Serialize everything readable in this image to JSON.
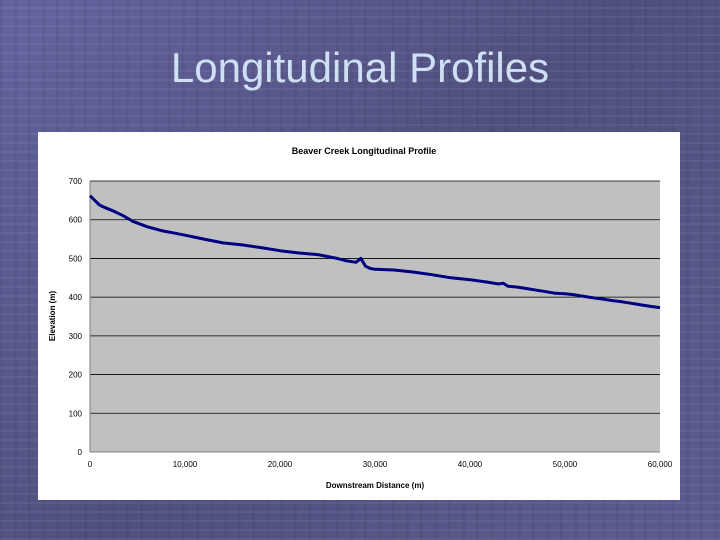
{
  "slide": {
    "title": "Longitudinal Profiles"
  },
  "colors": {
    "plot_background": "#c0c0c0",
    "line": "#000080",
    "gridline": "#000000"
  },
  "chart_data": {
    "type": "line",
    "title": "Beaver Creek Longitudinal Profile",
    "xlabel": "Downstream Distance (m)",
    "ylabel": "Elevation (m)",
    "xlim": [
      0,
      60000
    ],
    "ylim": [
      0,
      700
    ],
    "x_ticks": [
      0,
      10000,
      20000,
      30000,
      40000,
      50000,
      60000
    ],
    "x_tick_labels": [
      "0",
      "10,000",
      "20,000",
      "30,000",
      "40,000",
      "50,000",
      "60,000"
    ],
    "y_ticks": [
      0,
      100,
      200,
      300,
      400,
      500,
      600,
      700
    ],
    "y_tick_labels": [
      "0",
      "100",
      "200",
      "300",
      "400",
      "500",
      "600",
      "700"
    ],
    "horizontal_gridlines": true,
    "legend": "none",
    "series": [
      {
        "name": "Elevation",
        "x": [
          0,
          500,
          1000,
          1500,
          2500,
          3500,
          4500,
          6000,
          7500,
          9000,
          10000,
          12000,
          14000,
          16000,
          18000,
          20000,
          22000,
          24000,
          25000,
          26000,
          27000,
          28000,
          28500,
          29000,
          29500,
          30000,
          32000,
          34000,
          36000,
          38000,
          40000,
          42000,
          43000,
          43500,
          44000,
          45000,
          46000,
          47000,
          48000,
          49000,
          50000,
          51000,
          52000,
          53000,
          54000,
          55000,
          56000,
          57000,
          58000,
          59000,
          60000
        ],
        "y": [
          662,
          650,
          638,
          632,
          622,
          610,
          596,
          582,
          572,
          565,
          560,
          550,
          540,
          535,
          528,
          520,
          514,
          510,
          505,
          500,
          494,
          490,
          500,
          480,
          474,
          472,
          470,
          465,
          458,
          450,
          445,
          438,
          434,
          436,
          428,
          426,
          422,
          418,
          414,
          410,
          409,
          406,
          402,
          398,
          395,
          391,
          388,
          384,
          380,
          376,
          373
        ]
      }
    ]
  }
}
